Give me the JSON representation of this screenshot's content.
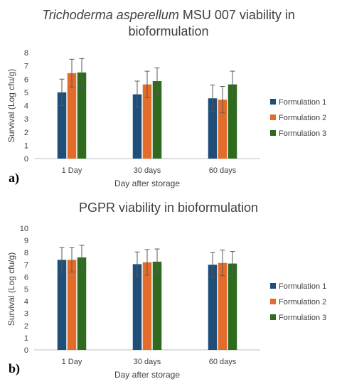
{
  "colors": {
    "formulation_1": "#1f4e79",
    "formulation_2": "#e46c2a",
    "formulation_3": "#2e6b1f",
    "axis": "#bfbfbf",
    "text": "#404040"
  },
  "chart_data": [
    {
      "type": "bar",
      "panel_label": "a)",
      "title_italic": "Trichoderma asperellum",
      "title_rest_line1": " MSU 007 viability  in",
      "title_line2": "bioformulation",
      "xlabel": "Day after storage",
      "ylabel": "Survival (Log cfu/g)",
      "ylim": [
        0,
        8
      ],
      "ytick_step": 1,
      "yticks": [
        "0",
        "1",
        "2",
        "3",
        "4",
        "5",
        "6",
        "7",
        "8"
      ],
      "categories": [
        "1 Day",
        "30 days",
        "60 days"
      ],
      "series": [
        {
          "name": "Formulation 1",
          "values": [
            5.0,
            4.85,
            4.55
          ],
          "error": [
            1.0,
            1.0,
            1.0
          ]
        },
        {
          "name": "Formulation 2",
          "values": [
            6.45,
            5.6,
            4.45
          ],
          "error": [
            1.05,
            1.0,
            1.0
          ]
        },
        {
          "name": "Formulation 3",
          "values": [
            6.5,
            5.85,
            5.6
          ],
          "error": [
            1.05,
            1.0,
            1.0
          ]
        }
      ],
      "legend_position": "right",
      "grid": false
    },
    {
      "type": "bar",
      "panel_label": "b)",
      "title": "PGPR viability in bioformulation",
      "xlabel": "Day after storage",
      "ylabel": "Survival (Log cfu/g)",
      "ylim": [
        0,
        10
      ],
      "ytick_step": 1,
      "yticks": [
        "0",
        "1",
        "2",
        "3",
        "4",
        "5",
        "6",
        "7",
        "8",
        "9",
        "10"
      ],
      "categories": [
        "1 Day",
        "30 days",
        "60 days"
      ],
      "series": [
        {
          "name": "Formulation 1",
          "values": [
            7.4,
            7.05,
            7.0
          ],
          "error": [
            1.0,
            1.0,
            1.0
          ]
        },
        {
          "name": "Formulation 2",
          "values": [
            7.4,
            7.2,
            7.15
          ],
          "error": [
            1.0,
            1.05,
            1.05
          ]
        },
        {
          "name": "Formulation 3",
          "values": [
            7.6,
            7.25,
            7.1
          ],
          "error": [
            1.0,
            1.05,
            1.0
          ]
        }
      ],
      "legend_position": "right",
      "grid": false
    }
  ]
}
